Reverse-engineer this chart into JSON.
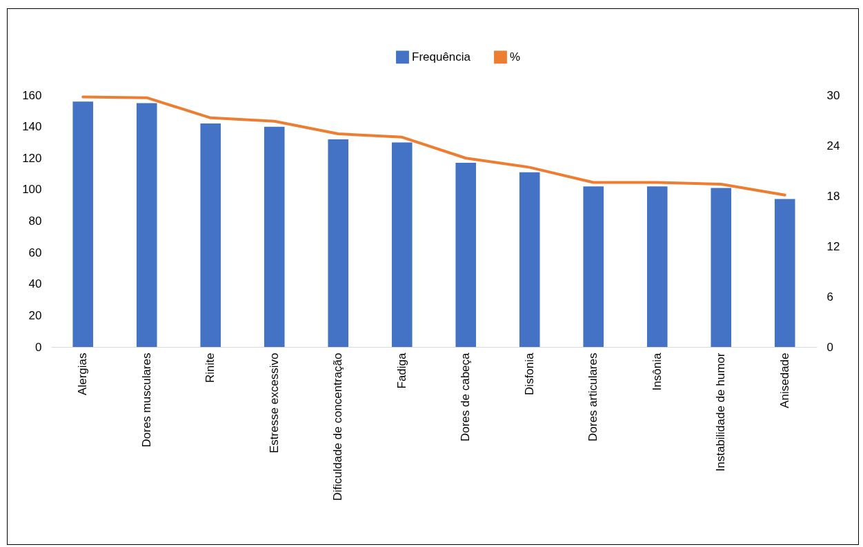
{
  "chart_data": {
    "type": "bar",
    "categories": [
      "Alergias",
      "Dores musculares",
      "Rinite",
      "Estresse excessivo",
      "Dificuldade de concentração",
      "Fadiga",
      "Dores de cabeça",
      "Disfonia",
      "Dores articulares",
      "Insônia",
      "Instabilidade de humor",
      "Anisedade"
    ],
    "series": [
      {
        "name": "Frequência",
        "color": "#4472c4",
        "values": [
          156,
          155,
          142,
          140,
          132,
          130,
          117,
          111,
          102,
          102,
          101,
          94
        ]
      },
      {
        "name": "%",
        "type": "line",
        "axis": "y2",
        "color": "#ed7d31",
        "values": [
          29.8,
          29.7,
          27.3,
          26.9,
          25.4,
          25.0,
          22.5,
          21.4,
          19.6,
          19.6,
          19.4,
          18.1
        ]
      }
    ],
    "ylim": [
      0,
      160
    ],
    "yticks": [
      0,
      20,
      40,
      60,
      80,
      100,
      120,
      140,
      160
    ],
    "y2lim": [
      0,
      30
    ],
    "y2ticks": [
      0,
      6,
      12,
      18,
      24,
      30
    ],
    "legend": "top",
    "grid": false
  }
}
